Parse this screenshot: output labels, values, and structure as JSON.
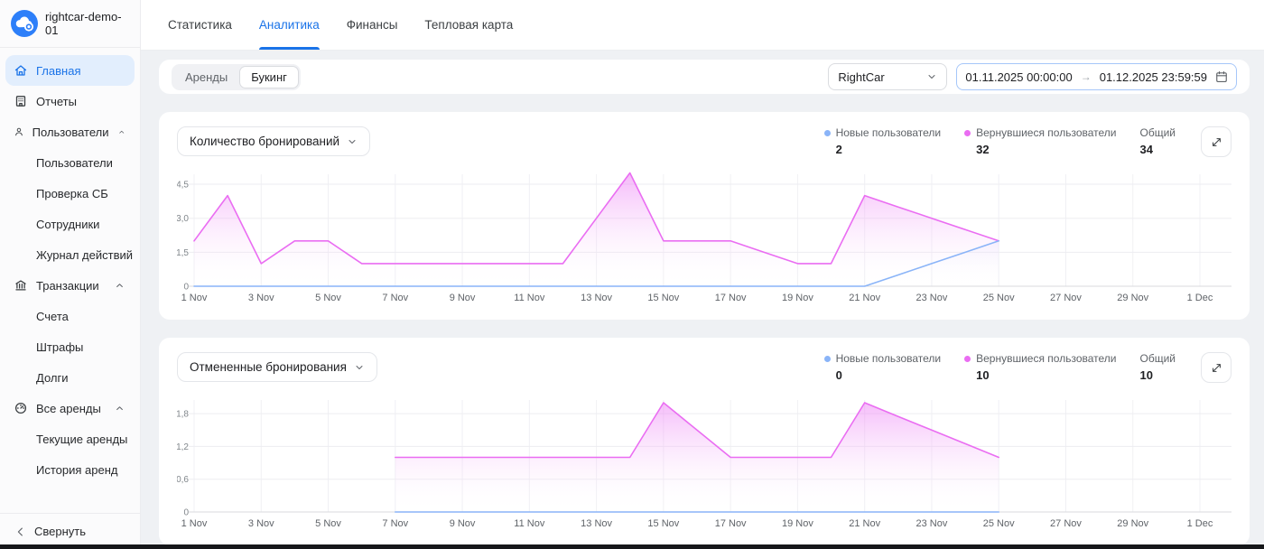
{
  "app": {
    "workspace": "rightcar-demo-01",
    "accent": "#1a73e8",
    "logo_color": "#2d7ff9"
  },
  "sidebar": {
    "items": [
      {
        "label": "Главная",
        "icon": "home-icon",
        "active": true,
        "children": []
      },
      {
        "label": "Отчеты",
        "icon": "reports-icon",
        "active": false,
        "children": []
      },
      {
        "label": "Пользователи",
        "icon": "users-icon",
        "active": false,
        "expanded": true,
        "children": [
          "Пользователи",
          "Проверка СБ",
          "Сотрудники",
          "Журнал действий"
        ]
      },
      {
        "label": "Транзакции",
        "icon": "bank-icon",
        "active": false,
        "expanded": true,
        "children": [
          "Счета",
          "Штрафы",
          "Долги"
        ]
      },
      {
        "label": "Все аренды",
        "icon": "gauge-icon",
        "active": false,
        "expanded": true,
        "children": [
          "Текущие аренды",
          "История аренд"
        ]
      }
    ],
    "collapse_label": "Свернуть"
  },
  "tabs": [
    {
      "label": "Статистика",
      "active": false
    },
    {
      "label": "Аналитика",
      "active": true
    },
    {
      "label": "Финансы",
      "active": false
    },
    {
      "label": "Тепловая карта",
      "active": false
    }
  ],
  "filters": {
    "segment": [
      {
        "label": "Аренды",
        "active": false
      },
      {
        "label": "Букинг",
        "active": true
      }
    ],
    "company_select": {
      "value": "RightCar"
    },
    "date_range": {
      "start": "01.11.2025 00:00:00",
      "end": "01.12.2025 23:59:59"
    }
  },
  "legend_labels": {
    "new": "Новые пользователи",
    "returning": "Вернувшиеся пользователи",
    "total": "Общий"
  },
  "chart_data": [
    {
      "type": "area",
      "title": "Количество бронирований",
      "x_domain": [
        1,
        31
      ],
      "x_ticks": [
        {
          "label": "1 Nov",
          "day": 1
        },
        {
          "label": "3 Nov",
          "day": 3
        },
        {
          "label": "5 Nov",
          "day": 5
        },
        {
          "label": "7 Nov",
          "day": 7
        },
        {
          "label": "9 Nov",
          "day": 9
        },
        {
          "label": "11 Nov",
          "day": 11
        },
        {
          "label": "13 Nov",
          "day": 13
        },
        {
          "label": "15 Nov",
          "day": 15
        },
        {
          "label": "17 Nov",
          "day": 17
        },
        {
          "label": "19 Nov",
          "day": 19
        },
        {
          "label": "21 Nov",
          "day": 21
        },
        {
          "label": "23 Nov",
          "day": 23
        },
        {
          "label": "25 Nov",
          "day": 25
        },
        {
          "label": "27 Nov",
          "day": 27
        },
        {
          "label": "29 Nov",
          "day": 29
        },
        {
          "label": "1 Dec",
          "day": 31
        }
      ],
      "y_ticks": [
        {
          "label": "0",
          "value": 0
        },
        {
          "label": "1,5",
          "value": 1.5
        },
        {
          "label": "3,0",
          "value": 3
        },
        {
          "label": "4,5",
          "value": 4.5
        }
      ],
      "ylim": [
        0,
        5.06
      ],
      "grid": true,
      "legend_position": "top-right",
      "legend": {
        "new": "2",
        "returning": "32",
        "total": "34"
      },
      "series": [
        {
          "key": "returning",
          "name": "Вернувшиеся пользователи",
          "color": "#ea6df2",
          "fill_top": "rgba(236,122,245,0.55)",
          "points": [
            [
              1,
              2
            ],
            [
              2,
              4
            ],
            [
              3,
              1
            ],
            [
              4,
              2
            ],
            [
              5,
              2
            ],
            [
              6,
              1
            ],
            [
              7,
              1
            ],
            [
              8,
              1
            ],
            [
              9,
              1
            ],
            [
              10,
              1
            ],
            [
              11,
              1
            ],
            [
              12,
              1
            ],
            [
              13,
              3
            ],
            [
              14,
              5
            ],
            [
              15,
              2
            ],
            [
              16,
              2
            ],
            [
              17,
              2
            ],
            [
              18,
              1.5
            ],
            [
              19,
              1
            ],
            [
              20,
              1
            ],
            [
              21,
              4
            ],
            [
              22,
              3.5
            ],
            [
              23,
              3
            ],
            [
              24,
              2.5
            ],
            [
              25,
              2
            ]
          ]
        },
        {
          "key": "new",
          "name": "Новые пользователи",
          "color": "#8ab4f8",
          "fill_top": "rgba(148,158,242,0.45)",
          "points": [
            [
              1,
              0
            ],
            [
              2,
              0
            ],
            [
              3,
              0
            ],
            [
              4,
              0
            ],
            [
              5,
              0
            ],
            [
              6,
              0
            ],
            [
              7,
              0
            ],
            [
              8,
              0
            ],
            [
              9,
              0
            ],
            [
              10,
              0
            ],
            [
              11,
              0
            ],
            [
              12,
              0
            ],
            [
              13,
              0
            ],
            [
              14,
              0
            ],
            [
              15,
              0
            ],
            [
              16,
              0
            ],
            [
              17,
              0
            ],
            [
              18,
              0
            ],
            [
              19,
              0
            ],
            [
              20,
              0
            ],
            [
              21,
              0
            ],
            [
              22,
              0.5
            ],
            [
              23,
              1
            ],
            [
              24,
              1.5
            ],
            [
              25,
              2
            ]
          ]
        }
      ]
    },
    {
      "type": "area",
      "title": "Отмененные бронирования",
      "x_domain": [
        1,
        31
      ],
      "x_ticks": [
        {
          "label": "1 Nov",
          "day": 1
        },
        {
          "label": "3 Nov",
          "day": 3
        },
        {
          "label": "5 Nov",
          "day": 5
        },
        {
          "label": "7 Nov",
          "day": 7
        },
        {
          "label": "9 Nov",
          "day": 9
        },
        {
          "label": "11 Nov",
          "day": 11
        },
        {
          "label": "13 Nov",
          "day": 13
        },
        {
          "label": "15 Nov",
          "day": 15
        },
        {
          "label": "17 Nov",
          "day": 17
        },
        {
          "label": "19 Nov",
          "day": 19
        },
        {
          "label": "21 Nov",
          "day": 21
        },
        {
          "label": "23 Nov",
          "day": 23
        },
        {
          "label": "25 Nov",
          "day": 25
        },
        {
          "label": "27 Nov",
          "day": 27
        },
        {
          "label": "29 Nov",
          "day": 29
        },
        {
          "label": "1 Dec",
          "day": 31
        }
      ],
      "y_ticks": [
        {
          "label": "0",
          "value": 0
        },
        {
          "label": "0,6",
          "value": 0.6
        },
        {
          "label": "1,2",
          "value": 1.2
        },
        {
          "label": "1,8",
          "value": 1.8
        }
      ],
      "ylim": [
        0,
        2.1
      ],
      "grid": true,
      "legend_position": "top-right",
      "legend": {
        "new": "0",
        "returning": "10",
        "total": "10"
      },
      "series": [
        {
          "key": "returning",
          "name": "Вернувшиеся пользователи",
          "color": "#ea6df2",
          "fill_top": "rgba(236,122,245,0.55)",
          "points": [
            [
              7,
              1
            ],
            [
              8,
              1
            ],
            [
              9,
              1
            ],
            [
              10,
              1
            ],
            [
              11,
              1
            ],
            [
              12,
              1
            ],
            [
              13,
              1
            ],
            [
              14,
              1
            ],
            [
              15,
              2
            ],
            [
              16,
              1.5
            ],
            [
              17,
              1
            ],
            [
              18,
              1
            ],
            [
              19,
              1
            ],
            [
              20,
              1
            ],
            [
              21,
              2
            ],
            [
              22,
              1.75
            ],
            [
              23,
              1.5
            ],
            [
              24,
              1.25
            ],
            [
              25,
              1
            ]
          ]
        },
        {
          "key": "new",
          "name": "Новые пользователи",
          "color": "#8ab4f8",
          "fill_top": "rgba(148,158,242,0.45)",
          "points": [
            [
              7,
              0
            ],
            [
              8,
              0
            ],
            [
              9,
              0
            ],
            [
              10,
              0
            ],
            [
              11,
              0
            ],
            [
              12,
              0
            ],
            [
              13,
              0
            ],
            [
              14,
              0
            ],
            [
              15,
              0
            ],
            [
              16,
              0
            ],
            [
              17,
              0
            ],
            [
              18,
              0
            ],
            [
              19,
              0
            ],
            [
              20,
              0
            ],
            [
              21,
              0
            ],
            [
              22,
              0
            ],
            [
              23,
              0
            ],
            [
              24,
              0
            ],
            [
              25,
              0
            ]
          ]
        }
      ]
    }
  ]
}
